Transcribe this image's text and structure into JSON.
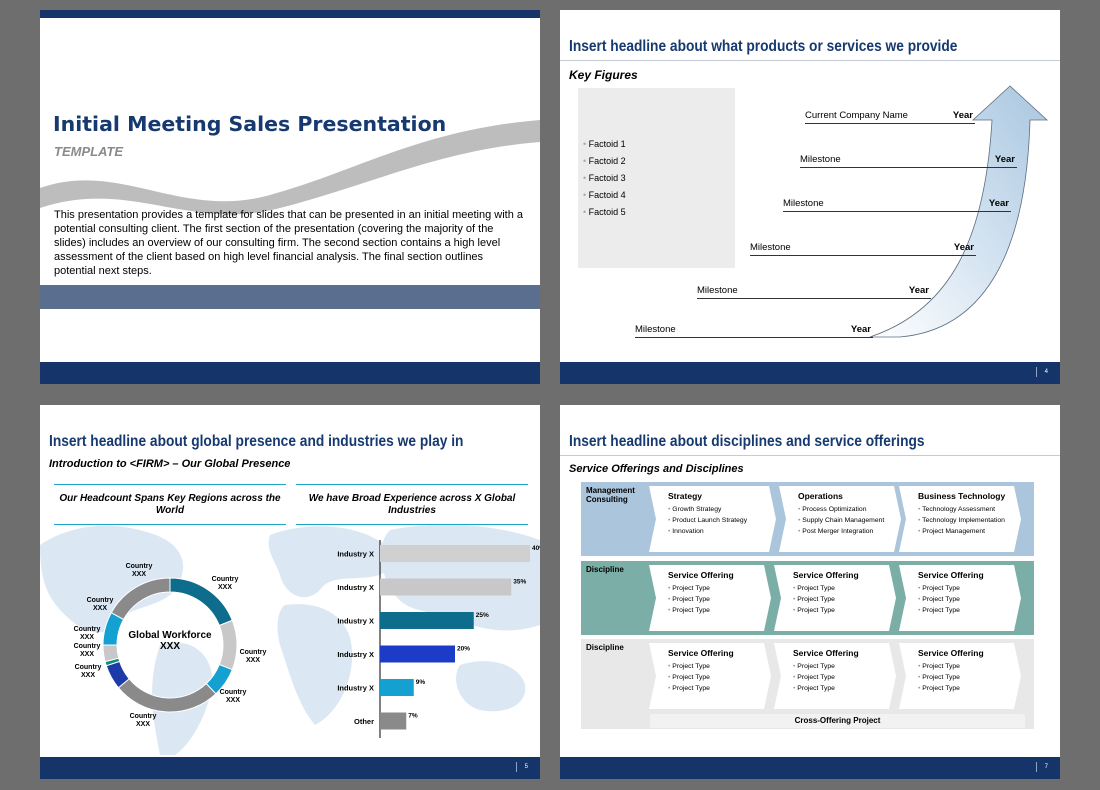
{
  "slide1": {
    "title": "Initial Meeting Sales Presentation",
    "subtitle": "TEMPLATE",
    "body": "This presentation provides a template for slides that can be presented in an initial meeting with a potential consulting client.  The first section of the presentation (covering the majority of the slides) includes an overview of our consulting firm.  The second section contains a high level assessment of the client based on high level financial analysis.  The final section outlines potential next steps."
  },
  "slide2": {
    "headline": "Insert headline about what products or services we provide",
    "key_figures_label": "Key Figures",
    "factoids": [
      "Factoid 1",
      "Factoid 2",
      "Factoid 3",
      "Factoid 4",
      "Factoid 5"
    ],
    "timeline": [
      {
        "label": "Current Company Name",
        "year": "Year"
      },
      {
        "label": "Milestone",
        "year": "Year"
      },
      {
        "label": "Milestone",
        "year": "Year"
      },
      {
        "label": "Milestone",
        "year": "Year"
      },
      {
        "label": "Milestone",
        "year": "Year"
      },
      {
        "label": "Milestone",
        "year": "Year"
      }
    ],
    "page_number": "4"
  },
  "slide3": {
    "headline": "Insert headline about global presence and industries we play in",
    "subheadline": "Introduction to <FIRM> – Our Global Presence",
    "left_header": "Our Headcount Spans Key Regions across the World",
    "right_header": "We have Broad Experience across X Global Industries",
    "donut_center_line1": "Global Workforce",
    "donut_center_line2": "XXX",
    "page_number": "5"
  },
  "slide4": {
    "headline": "Insert headline about disciplines and service offerings",
    "subheadline": "Service Offerings and Disciplines",
    "rows": [
      {
        "discipline": "Management Consulting",
        "color": "#abc5dc",
        "columns": [
          {
            "title": "Strategy",
            "items": [
              "Growth Strategy",
              "Product Launch Strategy",
              "Innovation"
            ]
          },
          {
            "title": "Operations",
            "items": [
              "Process Optimization",
              "Supply Chain Management",
              "Post Merger Integration"
            ]
          },
          {
            "title": "Business Technology",
            "items": [
              "Technology Assessment",
              "Technology Implementation",
              "Project Management"
            ]
          }
        ]
      },
      {
        "discipline": "Discipline",
        "color": "#7aaea6",
        "columns": [
          {
            "title": "Service Offering",
            "items": [
              "Project Type",
              "Project Type",
              "Project Type"
            ]
          },
          {
            "title": "Service Offering",
            "items": [
              "Project Type",
              "Project Type",
              "Project Type"
            ]
          },
          {
            "title": "Service Offering",
            "items": [
              "Project Type",
              "Project Type",
              "Project Type"
            ]
          }
        ]
      },
      {
        "discipline": "Discipline",
        "color": "#e8e8e8",
        "columns": [
          {
            "title": "Service Offering",
            "items": [
              "Project Type",
              "Project Type",
              "Project Type"
            ]
          },
          {
            "title": "Service Offering",
            "items": [
              "Project Type",
              "Project Type",
              "Project Type"
            ]
          },
          {
            "title": "Service Offering",
            "items": [
              "Project Type",
              "Project Type",
              "Project Type"
            ]
          }
        ]
      }
    ],
    "cross_offering": "Cross-Offering Project",
    "page_number": "7"
  },
  "chart_data": [
    {
      "type": "pie",
      "categories": [
        "Country XXX",
        "Country XXX",
        "Country XXX",
        "Country XXX",
        "Country XXX",
        "Country XXX",
        "Country XXX",
        "Country XXX",
        "Country XXX"
      ],
      "values": [
        19,
        12,
        7,
        26,
        6,
        1,
        4,
        8,
        17
      ],
      "colors": [
        "#0e6c8c",
        "#c8c8c8",
        "#14a0d0",
        "#8a8a8a",
        "#1c3aa8",
        "#0c8c7c",
        "#c8c8c8",
        "#14a0d0",
        "#8a8a8a"
      ],
      "title": ""
    },
    {
      "type": "bar",
      "orientation": "horizontal",
      "categories": [
        "Industry X",
        "Industry X",
        "Industry X",
        "Industry X",
        "Industry X",
        "Other"
      ],
      "values": [
        40,
        35,
        25,
        20,
        9,
        7
      ],
      "value_labels": [
        "40%",
        "35%",
        "25%",
        "20%",
        "9%",
        "7%"
      ],
      "colors": [
        "#d0d0d0",
        "#c8c8c8",
        "#0e6c8c",
        "#1c3cc8",
        "#14a0d0",
        "#8a8a8a"
      ],
      "xlim": [
        0,
        40
      ],
      "title": ""
    }
  ]
}
